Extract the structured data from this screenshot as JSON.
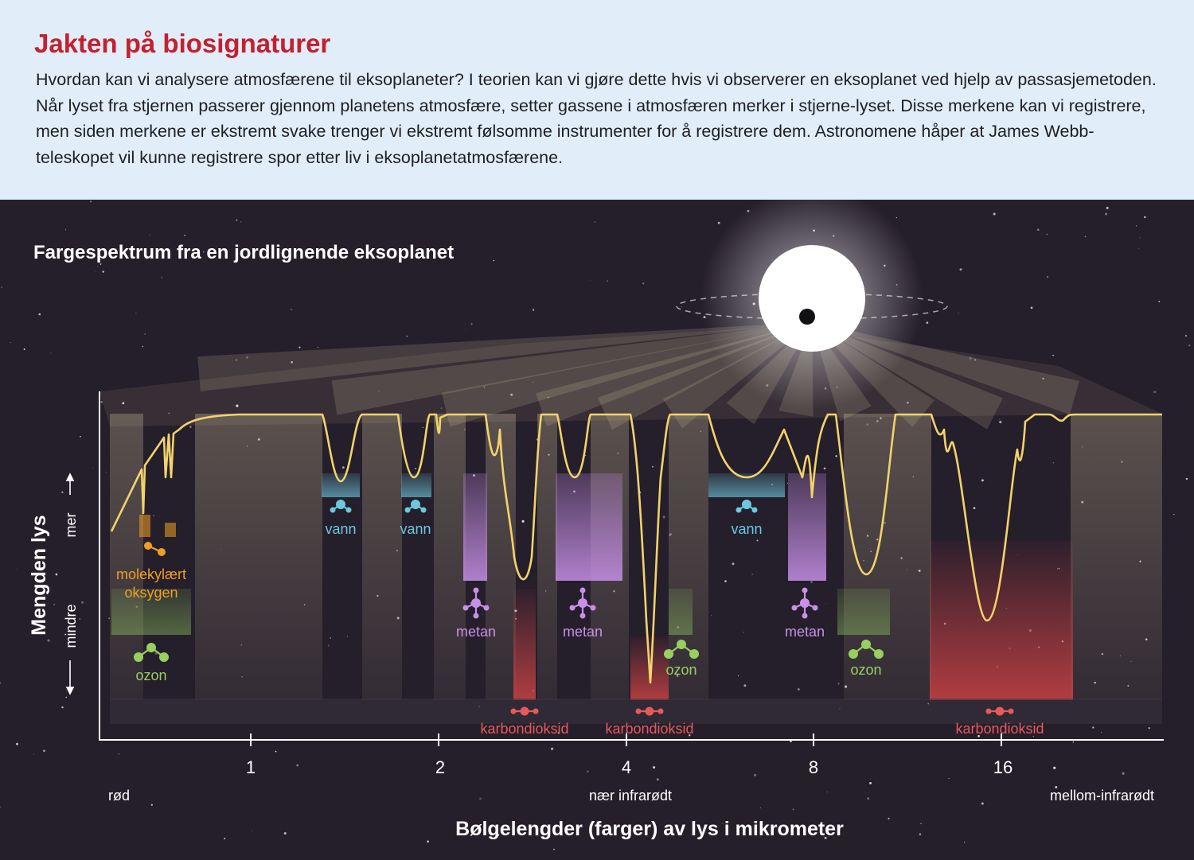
{
  "header": {
    "title": "Jakten på biosignaturer",
    "body": "Hvordan kan vi analysere atmosfærene til eksoplaneter? I teorien kan vi gjøre dette hvis vi observerer en eksoplanet ved hjelp av passasjemetoden. Når lyset fra stjernen passerer gjennom planetens atmosfære, setter gassene i atmosfæren merker i stjerne-lyset. Disse merkene kan vi registrere, men siden merkene er ekstremt svake trenger vi ekstremt følsomme instrumenter for å registrere dem. Astronomene håper at James Webb-teleskopet vil kunne registrere spor etter liv i eksoplanetatmosfærene."
  },
  "figure": {
    "title": "Fargespektrum fra en jordlignende eksoplanet",
    "y_axis": {
      "label": "Mengden lys",
      "more": "mer",
      "less": "mindre"
    },
    "x_axis": {
      "label": "Bølgelengder (farger) av lys i mikrometer",
      "ticks": [
        "1",
        "2",
        "4",
        "8",
        "16"
      ],
      "regions": [
        "rød",
        "nær infrarødt",
        "mellom-infrarødt"
      ]
    },
    "gases": {
      "oxygen": {
        "name": "molekylært oksygen",
        "line1": "molekylært",
        "line2": "oksygen",
        "color": "#f0a020"
      },
      "water": {
        "name": "vann",
        "color": "#6cc8dc"
      },
      "methane": {
        "name": "metan",
        "color": "#c890e8"
      },
      "ozone": {
        "name": "ozon",
        "color": "#98d060"
      },
      "co2": {
        "name": "karbondioksid",
        "color": "#e85a5a"
      }
    },
    "colors": {
      "spectrum": "#f2d36a",
      "background": "#251e2b",
      "title": "#c4202e"
    }
  }
}
